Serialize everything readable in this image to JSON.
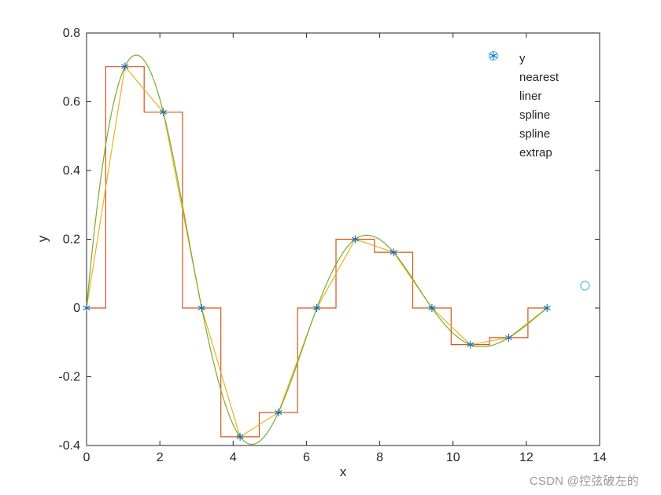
{
  "chart_data": {
    "type": "line",
    "title": "",
    "xlabel": "x",
    "ylabel": "y",
    "xlim": [
      0,
      14
    ],
    "ylim": [
      -0.4,
      0.8
    ],
    "xticks": [
      0,
      2,
      4,
      6,
      8,
      10,
      12,
      14
    ],
    "yticks": [
      -0.4,
      -0.2,
      0,
      0.2,
      0.4,
      0.6,
      0.8
    ],
    "grid": false,
    "legend_position": "top-right-inside",
    "legend_box": false,
    "curve_range": [
      0,
      12.5664
    ],
    "sample_points": {
      "name": "y",
      "marker": "asterisk",
      "color": "#0072BD",
      "x": [
        0,
        1.0472,
        2.0944,
        3.1416,
        4.1888,
        5.236,
        6.2832,
        7.3304,
        8.3776,
        9.4248,
        10.472,
        11.5192,
        12.5664
      ],
      "y": [
        0,
        0.7024,
        0.5697,
        0,
        -0.3747,
        -0.3039,
        0,
        0.2,
        0.1621,
        0,
        -0.1066,
        -0.0865,
        0
      ]
    },
    "series": [
      {
        "name": "nearest",
        "interp": "nearest",
        "color": "#D95319"
      },
      {
        "name": "liner",
        "interp": "linear",
        "color": "#EDB120"
      },
      {
        "name": "spline",
        "interp": "spline",
        "color": "#77AC30"
      }
    ],
    "extrap_point": {
      "name": "spline extrap",
      "marker": "circle",
      "color": "#4DBEEE",
      "x": 13.6,
      "y": 0.065
    }
  },
  "legend": {
    "rows": [
      {
        "marker": "asterisk",
        "color": "#0072BD",
        "text": "y"
      },
      {
        "marker": "none",
        "color": "",
        "text": "nearest"
      },
      {
        "marker": "none",
        "color": "",
        "text": "liner"
      },
      {
        "marker": "none",
        "color": "",
        "text": "spline"
      },
      {
        "marker": "none",
        "color": "",
        "text": "spline"
      },
      {
        "marker": "circle",
        "color": "#4DBEEE",
        "text": "extrap"
      }
    ]
  },
  "colors": {
    "axis": "#262626",
    "background": "#ffffff",
    "tick_label": "#262626",
    "watermark": "#919191"
  },
  "watermark": {
    "text": "CSDN @控弦破左的"
  }
}
